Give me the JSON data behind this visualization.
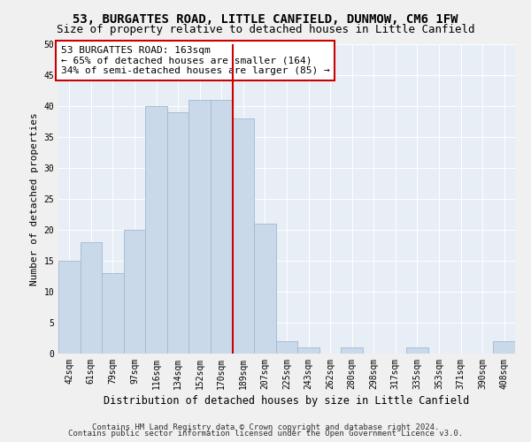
{
  "title1": "53, BURGATTES ROAD, LITTLE CANFIELD, DUNMOW, CM6 1FW",
  "title2": "Size of property relative to detached houses in Little Canfield",
  "xlabel": "Distribution of detached houses by size in Little Canfield",
  "ylabel": "Number of detached properties",
  "categories": [
    "42sqm",
    "61sqm",
    "79sqm",
    "97sqm",
    "116sqm",
    "134sqm",
    "152sqm",
    "170sqm",
    "189sqm",
    "207sqm",
    "225sqm",
    "243sqm",
    "262sqm",
    "280sqm",
    "298sqm",
    "317sqm",
    "335sqm",
    "353sqm",
    "371sqm",
    "390sqm",
    "408sqm"
  ],
  "values": [
    15,
    18,
    13,
    20,
    40,
    39,
    41,
    41,
    38,
    21,
    2,
    1,
    0,
    1,
    0,
    0,
    1,
    0,
    0,
    0,
    2
  ],
  "bar_color": "#c9d9ea",
  "bar_edge_color": "#a0b8d0",
  "vline_x": 7.5,
  "vline_color": "#cc0000",
  "annotation_text": "53 BURGATTES ROAD: 163sqm\n← 65% of detached houses are smaller (164)\n34% of semi-detached houses are larger (85) →",
  "annotation_box_color": "#ffffff",
  "annotation_box_edge": "#cc0000",
  "ylim": [
    0,
    50
  ],
  "yticks": [
    0,
    5,
    10,
    15,
    20,
    25,
    30,
    35,
    40,
    45,
    50
  ],
  "background_color": "#e8eef5",
  "grid_color": "#ffffff",
  "footer1": "Contains HM Land Registry data © Crown copyright and database right 2024.",
  "footer2": "Contains public sector information licensed under the Open Government Licence v3.0.",
  "title1_fontsize": 10,
  "title2_fontsize": 9,
  "xlabel_fontsize": 8.5,
  "ylabel_fontsize": 8,
  "tick_fontsize": 7,
  "annotation_fontsize": 8,
  "footer_fontsize": 6.5
}
